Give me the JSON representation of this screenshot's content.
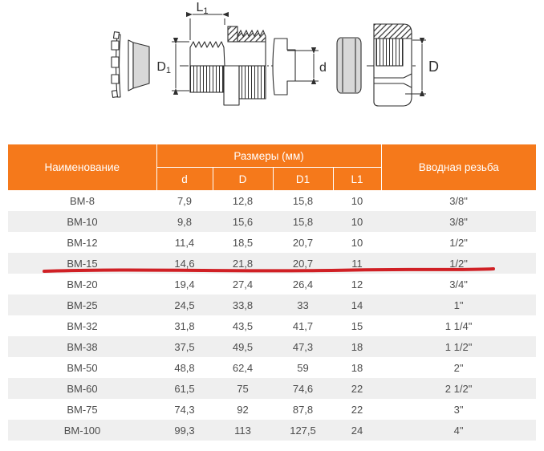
{
  "diagram": {
    "dim_labels": {
      "l1_base": "L",
      "l1_sub": "1",
      "d1_base": "D",
      "d1_sub": "1",
      "d_small": "d",
      "d_big": "D"
    }
  },
  "table": {
    "header": {
      "name": "Наименование",
      "sizes_group": "Размеры (мм)",
      "col_d": "d",
      "col_D": "D",
      "col_D1": "D1",
      "col_L1": "L1",
      "thread": "Вводная резьба"
    },
    "rows": [
      [
        "ВМ-8",
        "7,9",
        "12,8",
        "15,8",
        "10",
        "3/8\""
      ],
      [
        "ВМ-10",
        "9,8",
        "15,6",
        "15,8",
        "10",
        "3/8\""
      ],
      [
        "ВМ-12",
        "11,4",
        "18,5",
        "20,7",
        "10",
        "1/2\""
      ],
      [
        "ВМ-15",
        "14,6",
        "21,8",
        "20,7",
        "11",
        "1/2\""
      ],
      [
        "ВМ-20",
        "19,4",
        "27,4",
        "26,4",
        "12",
        "3/4\""
      ],
      [
        "ВМ-25",
        "24,5",
        "33,8",
        "33",
        "14",
        "1\""
      ],
      [
        "ВМ-32",
        "31,8",
        "43,5",
        "41,7",
        "15",
        "1 1/4\""
      ],
      [
        "ВМ-38",
        "37,5",
        "49,5",
        "47,3",
        "18",
        "1 1/2\""
      ],
      [
        "ВМ-50",
        "48,8",
        "62,4",
        "59",
        "18",
        "2\""
      ],
      [
        "ВМ-60",
        "61,5",
        "75",
        "74,6",
        "22",
        "2 1/2\""
      ],
      [
        "ВМ-75",
        "74,3",
        "92",
        "87,8",
        "22",
        "3\""
      ],
      [
        "ВМ-100",
        "99,3",
        "113",
        "127,5",
        "24",
        "4\""
      ]
    ],
    "highlight_under_row": "ВМ-15"
  },
  "colors": {
    "header_bg": "#f5791b",
    "header_text": "#ffffff",
    "row_alt_bg": "#efefef",
    "body_text": "#4d4d4d",
    "highlight_line": "#d02025",
    "diagram_stroke": "#2e2e2e",
    "diagram_fill_gray": "#d8d8d8"
  }
}
